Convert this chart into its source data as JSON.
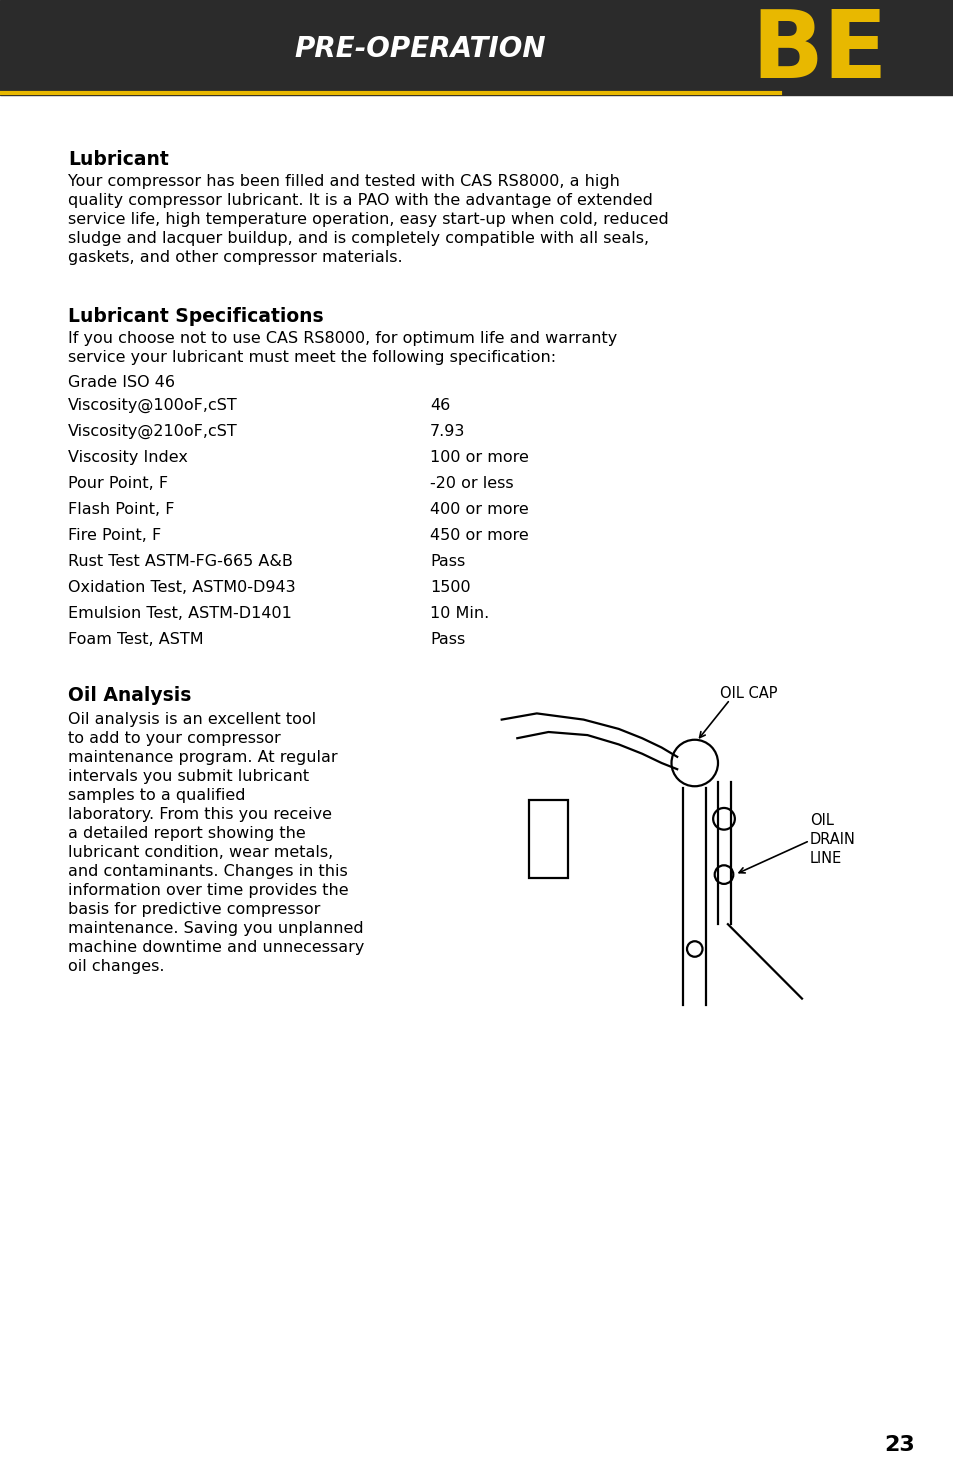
{
  "bg_header": "#2b2b2b",
  "bg_body": "#ffffff",
  "header_text": "PRE-OPERATION",
  "accent_color": "#e8b800",
  "page_number": "23",
  "lubricant_title": "Lubricant",
  "lubricant_body_lines": [
    "Your compressor has been filled and tested with CAS RS8000, a high",
    "quality compressor lubricant. It is a PAO with the advantage of extended",
    "service life, high temperature operation, easy start-up when cold, reduced",
    "sludge and lacquer buildup, and is completely compatible with all seals,",
    "gaskets, and other compressor materials."
  ],
  "lub_spec_title": "Lubricant Specifications",
  "lub_spec_intro_lines": [
    "If you choose not to use CAS RS8000, for optimum life and warranty",
    "service your lubricant must meet the following specification:"
  ],
  "grade_label": "Grade ISO 46",
  "spec_rows": [
    [
      "Viscosity@100oF,cST",
      "46"
    ],
    [
      "Viscosity@210oF,cST",
      "7.93"
    ],
    [
      "Viscosity Index",
      "100 or more"
    ],
    [
      "Pour Point, F",
      "-20 or less"
    ],
    [
      "Flash Point, F",
      "400 or more"
    ],
    [
      "Fire Point, F",
      "450 or more"
    ],
    [
      "Rust Test ASTM-FG-665 A&B",
      "Pass"
    ],
    [
      "Oxidation Test, ASTM0-D943",
      "1500"
    ],
    [
      "Emulsion Test, ASTM-D1401",
      "10 Min."
    ],
    [
      "Foam Test, ASTM",
      "Pass"
    ]
  ],
  "oil_analysis_title": "Oil Analysis",
  "oil_analysis_lines": [
    "Oil analysis is an excellent tool",
    "to add to your compressor",
    "maintenance program. At regular",
    "intervals you submit lubricant",
    "samples to a qualified",
    "laboratory. From this you receive",
    "a detailed report showing the",
    "lubricant condition, wear metals,",
    "and contaminants. Changes in this",
    "information over time provides the",
    "basis for predictive compressor",
    "maintenance. Saving you unplanned",
    "machine downtime and unnecessary",
    "oil changes."
  ]
}
